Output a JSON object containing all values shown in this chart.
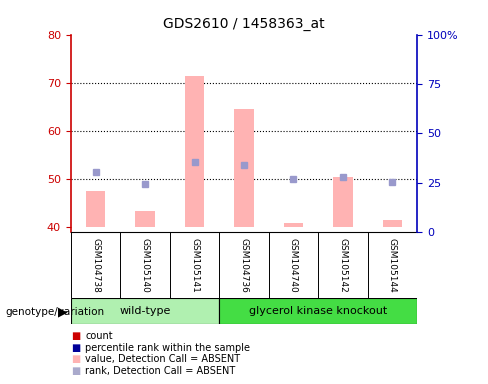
{
  "title": "GDS2610 / 1458363_at",
  "samples": [
    "GSM104738",
    "GSM105140",
    "GSM105141",
    "GSM104736",
    "GSM104740",
    "GSM105142",
    "GSM105144"
  ],
  "wt_count": 3,
  "ylim_left": [
    39,
    80
  ],
  "ylim_right": [
    0,
    100
  ],
  "yticks_left": [
    40,
    50,
    60,
    70,
    80
  ],
  "yticks_right": [
    0,
    25,
    50,
    75,
    100
  ],
  "ytick_right_labels": [
    "0",
    "25",
    "50",
    "75",
    "100%"
  ],
  "grid_yticks": [
    50,
    60,
    70
  ],
  "bar_bottom": 40,
  "pink_bar_tops": [
    47.5,
    43.5,
    71.5,
    64.5,
    41.0,
    50.5,
    41.5
  ],
  "blue_square_y_left": [
    51.5,
    49.0,
    53.5,
    53.0,
    50.0,
    50.5,
    49.5
  ],
  "pink_bar_color": "#ffb3b3",
  "blue_square_color": "#9999cc",
  "left_axis_color": "#cc0000",
  "right_axis_color": "#0000bb",
  "wt_bg": "#b0f0b0",
  "gk_bg": "#44dd44",
  "sample_box_bg": "#d0d0d0",
  "plot_bg": "#ffffff",
  "genotype_label": "genotype/variation",
  "legend_items": [
    {
      "label": "count",
      "color": "#cc0000"
    },
    {
      "label": "percentile rank within the sample",
      "color": "#000099"
    },
    {
      "label": "value, Detection Call = ABSENT",
      "color": "#ffb3b3"
    },
    {
      "label": "rank, Detection Call = ABSENT",
      "color": "#aaaacc"
    }
  ]
}
